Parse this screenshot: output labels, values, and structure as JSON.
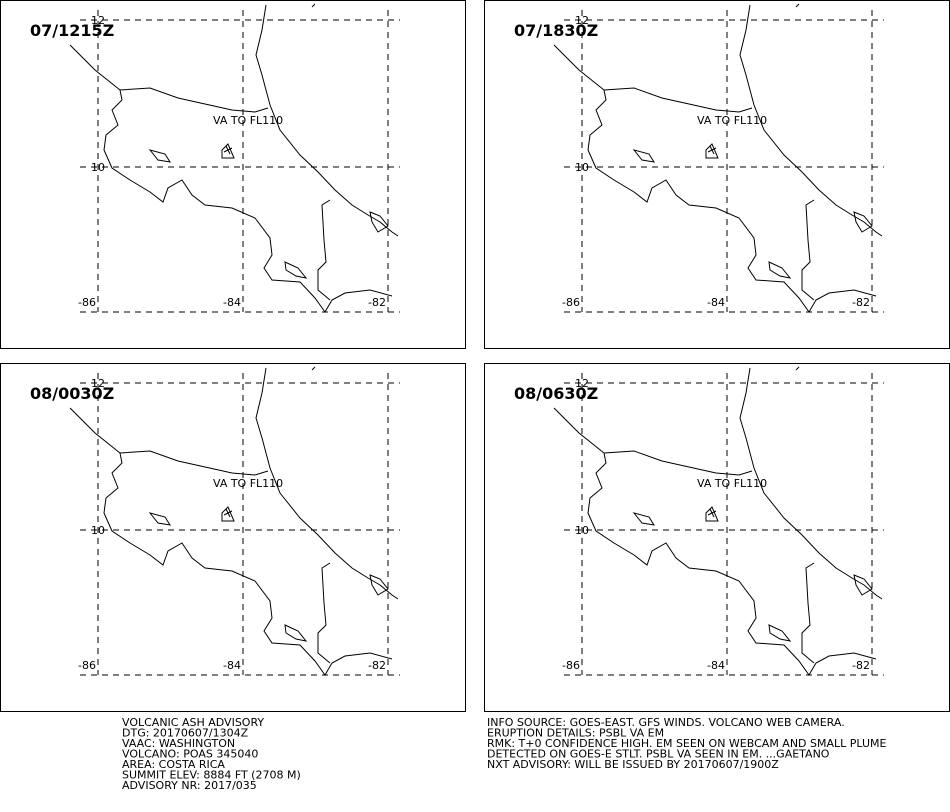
{
  "panels": [
    {
      "time": "07/1215Z",
      "annotation": "VA TO FL110"
    },
    {
      "time": "07/1830Z",
      "annotation": "VA TO FL110"
    },
    {
      "time": "08/0030Z",
      "annotation": "VA TO FL110"
    },
    {
      "time": "08/0630Z",
      "annotation": "VA TO FL110"
    }
  ],
  "grid": {
    "lat_ticks": [
      12,
      10
    ],
    "lon_ticks": [
      -86,
      -84,
      -82
    ]
  },
  "advisory_left": [
    "VOLCANIC ASH ADVISORY",
    "DTG: 20170607/1304Z",
    "VAAC: WASHINGTON",
    "VOLCANO: POAS 345040",
    "AREA: COSTA RICA",
    "SUMMIT ELEV: 8884 FT (2708 M)",
    "ADVISORY NR: 2017/035"
  ],
  "advisory_right": [
    "INFO SOURCE: GOES-EAST. GFS WINDS. VOLCANO WEB CAMERA.",
    "ERUPTION DETAILS: PSBL VA EM",
    "RMK: T+0 CONFIDENCE HIGH. EM SEEN ON WEBCAM AND SMALL PLUME",
    "DETECTED ON GOES-E STLT. PSBL VA SEEN IN EM. ...GAETANO",
    "NXT ADVISORY: WILL BE ISSUED BY 20170607/1900Z"
  ]
}
